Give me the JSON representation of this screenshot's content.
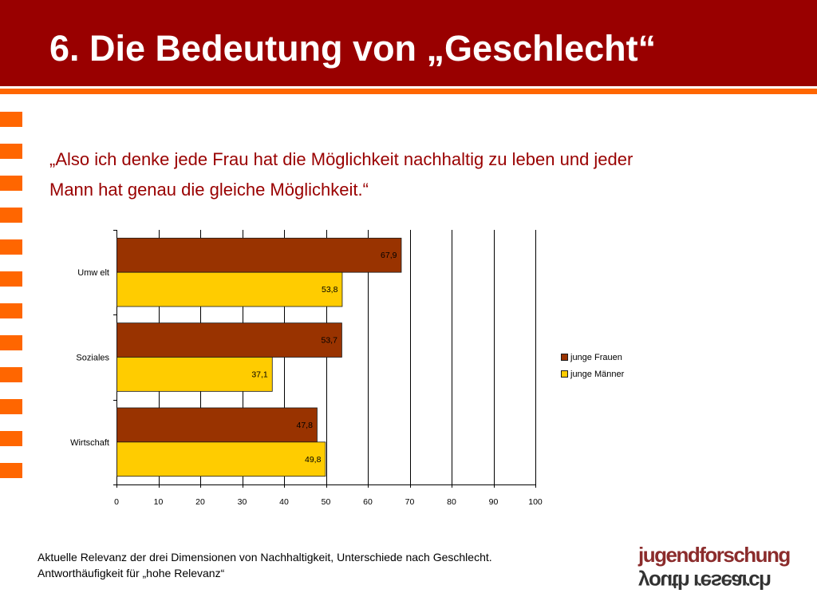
{
  "slide": {
    "title": "6. Die Bedeutung von „Geschlecht“",
    "quote": [
      "„Also ich denke jede Frau hat die Möglichkeit nachhaltig zu leben und jeder",
      "Mann hat genau die gleiche Möglichkeit.“"
    ],
    "caption": [
      "Aktuelle Relevanz der drei Dimensionen von Nachhaltigkeit, Unterschiede nach Geschlecht.",
      "Antworthäufigkeit für „hohe Relevanz“"
    ],
    "logo": {
      "line1": "jugendforschung",
      "line2": "youth research"
    }
  },
  "colors": {
    "header": "#990000",
    "accent": "#FF6600",
    "quote": "#990000",
    "logo_primary": "#8B2C2C",
    "logo_secondary": "#333333"
  },
  "chart_data": {
    "type": "bar",
    "orientation": "horizontal",
    "categories": [
      "Umw elt",
      "Soziales",
      "Wirtschaft"
    ],
    "series": [
      {
        "name": "junge Frauen",
        "values": [
          67.9,
          53.7,
          47.8
        ],
        "labels": [
          "67,9",
          "53,7",
          "47,8"
        ],
        "color": "#993300"
      },
      {
        "name": "junge Männer",
        "values": [
          53.8,
          37.1,
          49.8
        ],
        "labels": [
          "53,8",
          "37,1",
          "49,8"
        ],
        "color": "#FFCC00"
      }
    ],
    "xlim": [
      0,
      100
    ],
    "xticks": [
      0,
      10,
      20,
      30,
      40,
      50,
      60,
      70,
      80,
      90,
      100
    ],
    "grid": true,
    "legend": "right"
  }
}
